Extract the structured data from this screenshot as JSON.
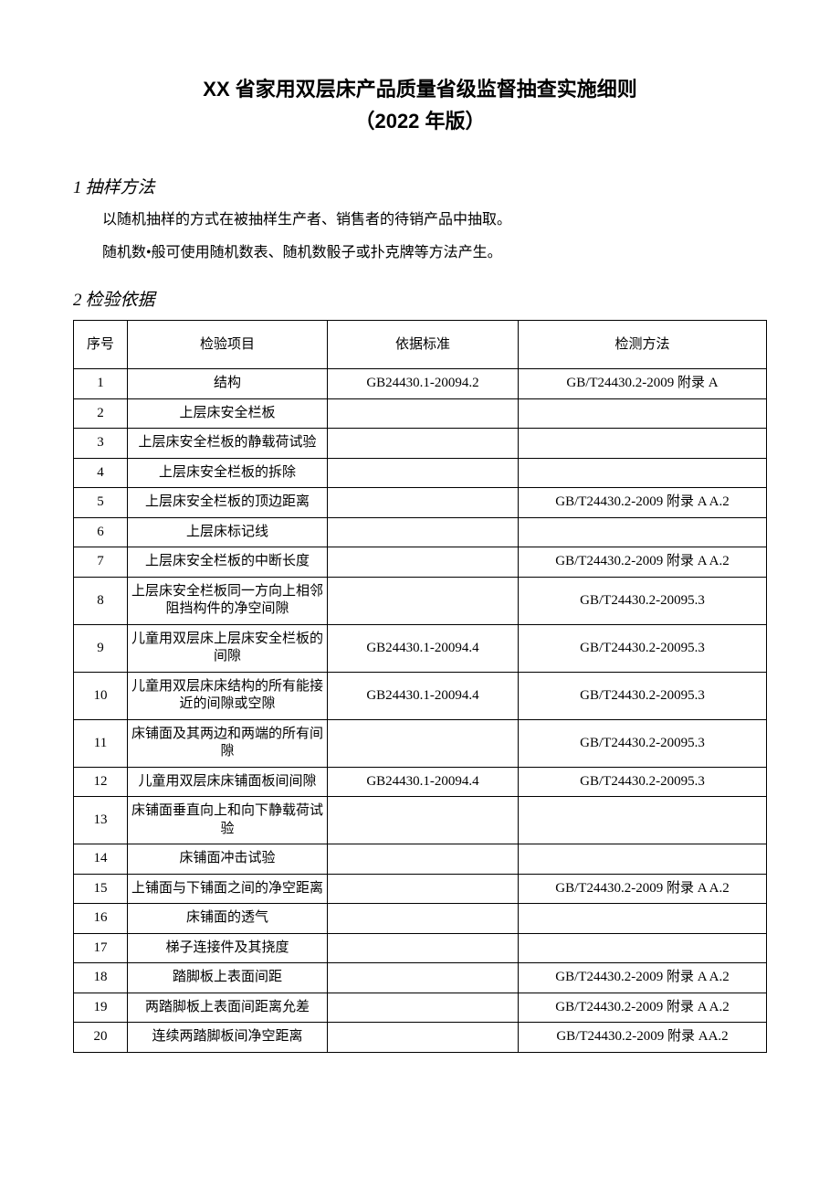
{
  "title_line1": "XX 省家用双层床产品质量省级监督抽查实施细则",
  "title_line2": "（2022 年版）",
  "section1": {
    "num": "1",
    "heading": "抽样方法",
    "p1": "以随机抽样的方式在被抽样生产者、销售者的待销产品中抽取。",
    "p2": "随机数•般可使用随机数表、随机数骰子或扑克牌等方法产生。"
  },
  "section2": {
    "num": "2",
    "heading": "检验依据"
  },
  "table": {
    "headers": [
      "序号",
      "检验项目",
      "依据标准",
      "检测方法"
    ],
    "rows": [
      {
        "seq": "1",
        "item": "结构",
        "std": "GB24430.1-20094.2",
        "method": "GB/T24430.2-2009 附录 A"
      },
      {
        "seq": "2",
        "item": "上层床安全栏板",
        "std": "",
        "method": ""
      },
      {
        "seq": "3",
        "item": "上层床安全栏板的静载荷试验",
        "std": "",
        "method": ""
      },
      {
        "seq": "4",
        "item": "上层床安全栏板的拆除",
        "std": "",
        "method": ""
      },
      {
        "seq": "5",
        "item": "上层床安全栏板的顶边距离",
        "std": "",
        "method": "GB/T24430.2-2009 附录 A A.2"
      },
      {
        "seq": "6",
        "item": "上层床标记线",
        "std": "",
        "method": ""
      },
      {
        "seq": "7",
        "item": "上层床安全栏板的中断长度",
        "std": "",
        "method": "GB/T24430.2-2009 附录 A A.2"
      },
      {
        "seq": "8",
        "item": "上层床安全栏板同一方向上相邻阻挡构件的净空间隙",
        "std": "",
        "method": "GB/T24430.2-20095.3"
      },
      {
        "seq": "9",
        "item": "儿童用双层床上层床安全栏板的间隙",
        "std": "GB24430.1-20094.4",
        "method": "GB/T24430.2-20095.3"
      },
      {
        "seq": "10",
        "item": "儿童用双层床床结构的所有能接近的间隙或空隙",
        "std": "GB24430.1-20094.4",
        "method": "GB/T24430.2-20095.3"
      },
      {
        "seq": "11",
        "item": "床铺面及其两边和两端的所有间隙",
        "std": "",
        "method": "GB/T24430.2-20095.3"
      },
      {
        "seq": "12",
        "item": "儿童用双层床床铺面板间间隙",
        "std": "GB24430.1-20094.4",
        "method": "GB/T24430.2-20095.3"
      },
      {
        "seq": "13",
        "item": "床铺面垂直向上和向下静载荷试验",
        "std": "",
        "method": ""
      },
      {
        "seq": "14",
        "item": "床铺面冲击试验",
        "std": "",
        "method": ""
      },
      {
        "seq": "15",
        "item": "上铺面与下铺面之间的净空距离",
        "std": "",
        "method": "GB/T24430.2-2009 附录 A A.2"
      },
      {
        "seq": "16",
        "item": "床铺面的透气",
        "std": "",
        "method": ""
      },
      {
        "seq": "17",
        "item": "梯子连接件及其挠度",
        "std": "",
        "method": ""
      },
      {
        "seq": "18",
        "item": "踏脚板上表面间距",
        "std": "",
        "method": "GB/T24430.2-2009 附录 A A.2"
      },
      {
        "seq": "19",
        "item": "两踏脚板上表面间距离允差",
        "std": "",
        "method": "GB/T24430.2-2009 附录 A A.2"
      },
      {
        "seq": "20",
        "item": "连续两踏脚板间净空距离",
        "std": "",
        "method": "GB/T24430.2-2009 附录 AA.2"
      }
    ]
  }
}
